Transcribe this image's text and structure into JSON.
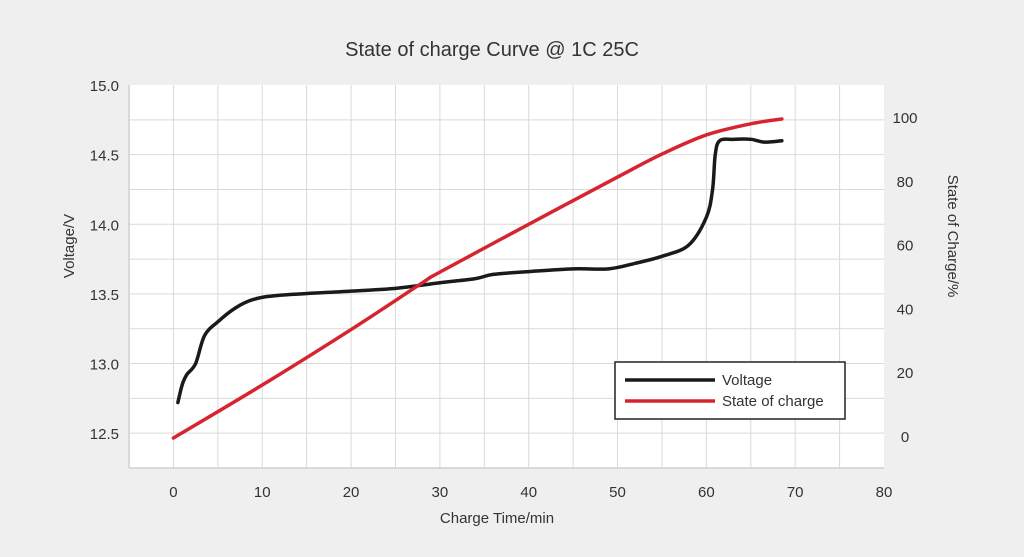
{
  "chart_data": {
    "type": "line",
    "title": "State of charge Curve @ 1C 25C",
    "xlabel": "Charge Time/min",
    "ylabel": "Voltage/V",
    "y2label": "State of Charge/%",
    "xlim": [
      -5,
      80
    ],
    "ylim": [
      12.25,
      15.0
    ],
    "y2lim": [
      0,
      100
    ],
    "xticks": [
      0,
      10,
      20,
      30,
      40,
      50,
      60,
      70,
      80
    ],
    "yticks": [
      "12.5",
      "13.0",
      "13.5",
      "14.0",
      "14.5",
      "15.0"
    ],
    "y2ticks": [
      0,
      20,
      40,
      60,
      80,
      100
    ],
    "grid": true,
    "legend_position": "bottom-right",
    "series": [
      {
        "name": "Voltage",
        "axis": "left",
        "color": "#1a1a1a",
        "x": [
          0.5,
          1,
          1.5,
          2.5,
          3.5,
          5,
          7,
          9,
          12,
          20,
          25,
          30,
          34,
          36,
          40,
          45,
          49,
          52,
          55,
          58,
          60,
          60.7,
          61,
          61.5,
          63,
          65,
          66.5,
          68.5
        ],
        "y": [
          12.72,
          12.85,
          12.92,
          13.0,
          13.2,
          13.3,
          13.4,
          13.46,
          13.49,
          13.52,
          13.54,
          13.58,
          13.61,
          13.64,
          13.66,
          13.68,
          13.68,
          13.72,
          13.77,
          13.85,
          14.05,
          14.25,
          14.5,
          14.6,
          14.61,
          14.61,
          14.59,
          14.6
        ]
      },
      {
        "name": "State of charge",
        "axis": "right",
        "color": "#d62530",
        "x": [
          0,
          10,
          20,
          28,
          30,
          40,
          50,
          55,
          60,
          65,
          68.5
        ],
        "y": [
          0,
          16.6,
          34,
          48.6,
          52,
          67,
          81.8,
          89,
          95,
          98.5,
          100
        ]
      }
    ]
  }
}
